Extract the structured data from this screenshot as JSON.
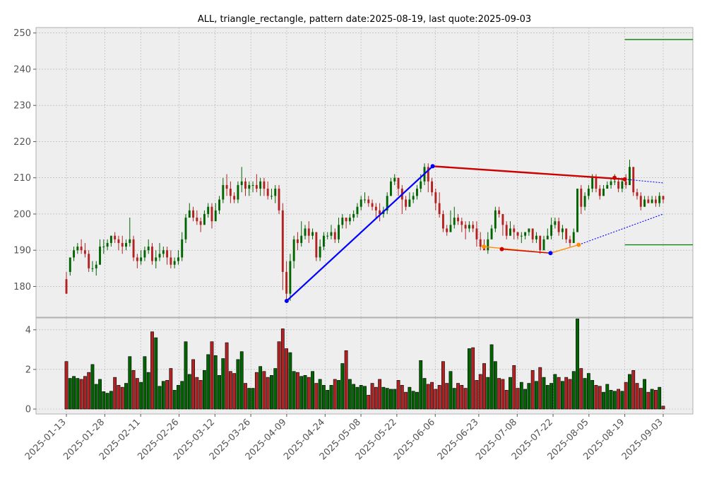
{
  "chart_data": {
    "type": "candlestick",
    "title": "ALL, triangle_rectangle, pattern date:2025-08-19, last quote:2025-09-03",
    "price_panel": {
      "ylim": [
        171.5,
        251.5
      ],
      "yticks": [
        180,
        190,
        200,
        210,
        220,
        230,
        240,
        250
      ]
    },
    "volume_panel": {
      "ylim": [
        -0.25,
        4.6
      ],
      "yticks": [
        0,
        2,
        4
      ]
    },
    "x_tick_labels": [
      "2025-01-13",
      "2025-01-28",
      "2025-02-11",
      "2025-02-26",
      "2025-03-12",
      "2025-03-26",
      "2025-04-09",
      "2025-04-24",
      "2025-05-08",
      "2025-05-22",
      "2025-06-06",
      "2025-06-23",
      "2025-07-08",
      "2025-07-22",
      "2025-08-05",
      "2025-08-19",
      "2025-09-03"
    ],
    "grid": true,
    "colors": {
      "up": "#006400",
      "down": "#b22222",
      "pattern_line": "#cc0000",
      "trend_line": "#0000ff",
      "support_line": "#ff8c00",
      "target_line": "#008000",
      "panel_bg": "#eeeeee",
      "grid": "#b0b0b0"
    },
    "trend_line": {
      "points": [
        [
          "2025-04-09",
          176.0
        ],
        [
          "2025-06-05",
          213.2
        ]
      ]
    },
    "resistance_line": {
      "points": [
        [
          "2025-06-05",
          213.2
        ],
        [
          "2025-08-19",
          209.6
        ]
      ],
      "extended_to": [
        "2025-09-03",
        208.6
      ]
    },
    "support_line": {
      "points": [
        [
          "2025-07-21",
          189.2
        ],
        [
          "2025-08-01",
          191.5
        ]
      ],
      "extended_to": [
        "2025-09-03",
        200.0
      ]
    },
    "lower_support_line": {
      "points": [
        [
          "2025-06-25",
          191.0
        ],
        [
          "2025-07-21",
          189.2
        ]
      ]
    },
    "marker_points": [
      {
        "date": "2025-04-09",
        "price": 176.0,
        "color": "#0000ff"
      },
      {
        "date": "2025-06-05",
        "price": 213.2,
        "color": "#0000ff"
      },
      {
        "date": "2025-08-15",
        "price": 210.0,
        "color": "#cc0000"
      },
      {
        "date": "2025-08-19",
        "price": 209.6,
        "color": "#cc0000"
      },
      {
        "date": "2025-07-21",
        "price": 189.2,
        "color": "#0000ff"
      },
      {
        "date": "2025-06-25",
        "price": 191.0,
        "color": "#ff8c00"
      },
      {
        "date": "2025-07-02",
        "price": 190.3,
        "color": "#cc0000"
      },
      {
        "date": "2025-08-01",
        "price": 191.5,
        "color": "#ff8c00"
      }
    ],
    "target_levels": [
      {
        "label": "upper target",
        "price": 248.2,
        "from": "2025-08-19"
      },
      {
        "label": "lower target",
        "price": 191.5,
        "from": "2025-08-19"
      }
    ],
    "candles": [
      [
        182,
        178,
        184,
        178,
        2.4
      ],
      [
        184,
        188,
        188,
        183,
        1.55
      ],
      [
        188,
        190,
        191,
        187,
        1.65
      ],
      [
        190,
        191,
        192,
        189,
        1.55
      ],
      [
        191,
        190,
        193,
        189,
        1.5
      ],
      [
        190,
        189,
        192,
        188,
        1.65
      ],
      [
        189,
        185,
        190,
        184,
        1.85
      ],
      [
        185,
        185,
        187,
        184,
        2.25
      ],
      [
        185,
        186,
        187,
        183,
        1.25
      ],
      [
        186,
        191,
        193,
        186,
        1.5
      ],
      [
        191,
        191,
        193,
        189,
        0.88
      ],
      [
        191,
        192,
        193,
        190,
        0.8
      ],
      [
        192,
        194,
        194,
        191,
        0.9
      ],
      [
        194,
        193,
        195,
        192,
        1.6
      ],
      [
        193,
        192,
        194,
        190,
        1.2
      ],
      [
        192,
        191,
        194,
        189,
        1.1
      ],
      [
        191,
        192,
        193,
        190,
        1.3
      ],
      [
        192,
        193,
        199,
        191,
        2.65
      ],
      [
        193,
        188,
        194,
        187,
        1.95
      ],
      [
        188,
        187,
        189,
        185,
        1.55
      ],
      [
        187,
        188,
        190,
        186,
        1.35
      ],
      [
        188,
        190,
        191,
        187,
        2.65
      ],
      [
        190,
        191,
        193,
        189,
        1.85
      ],
      [
        191,
        187,
        192,
        186,
        3.9
      ],
      [
        187,
        188,
        190,
        185,
        3.6
      ],
      [
        188,
        189,
        192,
        187,
        1.15
      ],
      [
        189,
        190,
        191,
        188,
        1.4
      ],
      [
        190,
        188,
        191,
        186,
        1.45
      ],
      [
        188,
        186,
        190,
        185,
        2.05
      ],
      [
        186,
        187,
        188,
        185,
        0.95
      ],
      [
        187,
        188,
        190,
        186,
        1.2
      ],
      [
        188,
        193,
        195,
        187,
        1.4
      ],
      [
        193,
        199,
        200,
        192,
        3.4
      ],
      [
        199,
        201,
        203,
        199,
        1.75
      ],
      [
        201,
        199,
        202,
        198,
        2.5
      ],
      [
        199,
        198,
        201,
        197,
        1.6
      ],
      [
        198,
        197,
        199,
        195,
        1.45
      ],
      [
        197,
        200,
        201,
        197,
        1.95
      ],
      [
        200,
        202,
        203,
        199,
        2.75
      ],
      [
        202,
        198,
        203,
        196,
        3.4
      ],
      [
        198,
        201,
        203,
        198,
        2.7
      ],
      [
        201,
        204,
        205,
        200,
        1.7
      ],
      [
        204,
        208,
        210,
        203,
        2.55
      ],
      [
        208,
        207,
        211,
        205,
        3.35
      ],
      [
        207,
        205,
        209,
        203,
        1.9
      ],
      [
        205,
        204,
        206,
        203,
        1.8
      ],
      [
        204,
        208,
        209,
        203,
        2.5
      ],
      [
        208,
        209,
        213,
        206,
        2.9
      ],
      [
        209,
        207,
        210,
        205,
        1.3
      ],
      [
        207,
        208,
        209,
        205,
        1.05
      ],
      [
        208,
        208,
        209,
        206,
        1.05
      ],
      [
        208,
        207,
        211,
        206,
        1.85
      ],
      [
        207,
        209,
        210,
        205,
        2.15
      ],
      [
        209,
        207,
        210,
        205,
        1.9
      ],
      [
        207,
        205,
        209,
        204,
        1.6
      ],
      [
        205,
        205,
        207,
        204,
        1.7
      ],
      [
        205,
        207,
        208,
        203,
        2.05
      ],
      [
        207,
        201,
        208,
        200,
        3.4
      ],
      [
        201,
        184,
        203,
        179,
        4.05
      ],
      [
        184,
        178,
        187,
        176,
        3.05
      ],
      [
        178,
        187,
        189,
        176,
        2.85
      ],
      [
        187,
        193,
        194,
        185,
        1.9
      ],
      [
        193,
        192,
        195,
        190,
        1.85
      ],
      [
        192,
        194,
        198,
        191,
        1.65
      ],
      [
        194,
        196,
        197,
        193,
        1.7
      ],
      [
        196,
        194,
        198,
        192,
        1.6
      ],
      [
        194,
        195,
        196,
        193,
        1.9
      ],
      [
        195,
        188,
        195,
        187,
        1.3
      ],
      [
        188,
        191,
        193,
        187,
        1.5
      ],
      [
        191,
        194,
        195,
        190,
        1.2
      ],
      [
        194,
        194,
        195,
        193,
        0.95
      ],
      [
        194,
        195,
        197,
        193,
        1.2
      ],
      [
        195,
        193,
        196,
        192,
        1.5
      ],
      [
        193,
        197,
        199,
        192,
        1.45
      ],
      [
        197,
        199,
        200,
        196,
        2.3
      ],
      [
        199,
        198,
        199,
        196,
        2.95
      ],
      [
        198,
        199,
        200,
        197,
        1.5
      ],
      [
        199,
        200,
        201,
        198,
        1.25
      ],
      [
        200,
        202,
        203,
        199,
        1.1
      ],
      [
        202,
        204,
        205,
        201,
        1.2
      ],
      [
        204,
        204,
        206,
        203,
        1.15
      ],
      [
        204,
        203,
        205,
        202,
        0.7
      ],
      [
        203,
        202,
        204,
        201,
        1.3
      ],
      [
        202,
        201,
        203,
        199,
        1.1
      ],
      [
        201,
        200,
        203,
        198,
        1.5
      ],
      [
        200,
        201,
        202,
        199,
        1.1
      ],
      [
        201,
        205,
        206,
        200,
        1.05
      ],
      [
        205,
        209,
        210,
        205,
        1.0
      ],
      [
        209,
        210,
        211,
        208,
        1.0
      ],
      [
        210,
        207,
        210,
        205,
        1.45
      ],
      [
        207,
        204,
        208,
        200,
        1.2
      ],
      [
        204,
        202,
        205,
        201,
        0.85
      ],
      [
        202,
        204,
        206,
        202,
        1.1
      ],
      [
        204,
        205,
        206,
        203,
        0.9
      ],
      [
        205,
        207,
        208,
        204,
        0.85
      ],
      [
        207,
        209,
        211,
        206,
        2.45
      ],
      [
        209,
        213,
        214,
        208,
        1.55
      ],
      [
        213,
        209,
        214,
        206,
        1.25
      ],
      [
        209,
        206,
        210,
        205,
        1.35
      ],
      [
        206,
        203,
        207,
        201,
        1.0
      ],
      [
        203,
        200,
        206,
        199,
        1.2
      ],
      [
        200,
        196,
        201,
        195,
        2.4
      ],
      [
        196,
        195,
        197,
        194,
        1.3
      ],
      [
        195,
        197,
        201,
        195,
        1.9
      ],
      [
        197,
        199,
        202,
        196,
        1.05
      ],
      [
        199,
        198,
        200,
        197,
        1.3
      ],
      [
        198,
        197,
        199,
        195,
        1.2
      ],
      [
        197,
        196,
        198,
        193,
        1.05
      ],
      [
        196,
        197,
        198,
        195,
        3.05
      ],
      [
        197,
        196,
        198,
        195,
        3.1
      ],
      [
        196,
        193,
        198,
        191,
        1.45
      ],
      [
        193,
        191,
        195,
        190,
        1.75
      ],
      [
        191,
        190,
        193,
        190,
        2.3
      ],
      [
        190,
        193,
        195,
        189,
        1.6
      ],
      [
        193,
        196,
        197,
        193,
        3.25
      ],
      [
        196,
        201,
        202,
        195,
        2.4
      ],
      [
        201,
        200,
        202,
        199,
        1.55
      ],
      [
        200,
        197,
        200,
        194,
        1.5
      ],
      [
        197,
        194,
        198,
        193,
        0.95
      ],
      [
        194,
        196,
        198,
        194,
        1.6
      ],
      [
        196,
        195,
        197,
        193,
        2.2
      ],
      [
        195,
        194,
        195,
        193,
        1.05
      ],
      [
        194,
        194,
        195,
        192,
        1.35
      ],
      [
        194,
        195,
        195,
        193,
        1.0
      ],
      [
        195,
        196,
        196,
        194,
        1.3
      ],
      [
        196,
        193,
        196,
        192,
        1.95
      ],
      [
        193,
        194,
        195,
        192,
        1.4
      ],
      [
        194,
        190,
        194,
        189,
        2.1
      ],
      [
        190,
        193,
        194,
        190,
        1.6
      ],
      [
        193,
        194,
        196,
        193,
        1.2
      ],
      [
        194,
        197,
        199,
        193,
        1.3
      ],
      [
        197,
        198,
        199,
        196,
        1.75
      ],
      [
        198,
        195,
        199,
        194,
        1.6
      ],
      [
        195,
        196,
        197,
        193,
        1.4
      ],
      [
        196,
        193,
        196,
        192,
        1.6
      ],
      [
        193,
        192,
        194,
        191,
        1.5
      ],
      [
        192,
        195,
        196,
        192,
        1.9
      ],
      [
        195,
        207,
        207,
        195,
        4.55
      ],
      [
        207,
        202,
        208,
        200,
        2.05
      ],
      [
        202,
        205,
        206,
        201,
        1.55
      ],
      [
        205,
        207,
        208,
        204,
        1.8
      ],
      [
        207,
        210,
        211,
        206,
        1.45
      ],
      [
        210,
        207,
        211,
        206,
        1.2
      ],
      [
        207,
        205,
        208,
        204,
        1.15
      ],
      [
        205,
        207,
        208,
        205,
        0.85
      ],
      [
        207,
        208,
        209,
        207,
        1.25
      ],
      [
        208,
        209,
        210,
        207,
        0.95
      ],
      [
        209,
        209,
        211,
        208,
        0.9
      ],
      [
        209,
        207,
        210,
        206,
        1.0
      ],
      [
        207,
        209,
        210,
        206,
        0.9
      ],
      [
        209,
        208,
        211,
        207,
        1.35
      ],
      [
        208,
        213,
        215,
        208,
        1.75
      ],
      [
        213,
        206,
        213,
        205,
        1.95
      ],
      [
        206,
        205,
        207,
        204,
        1.3
      ],
      [
        205,
        202,
        206,
        201,
        1.05
      ],
      [
        202,
        204,
        205,
        202,
        1.5
      ],
      [
        204,
        203,
        205,
        203,
        0.85
      ],
      [
        203,
        204,
        205,
        203,
        1.0
      ],
      [
        204,
        203,
        205,
        202,
        0.95
      ],
      [
        203,
        205,
        206,
        202,
        1.1
      ],
      [
        205,
        204,
        205,
        203,
        0.15
      ]
    ]
  }
}
